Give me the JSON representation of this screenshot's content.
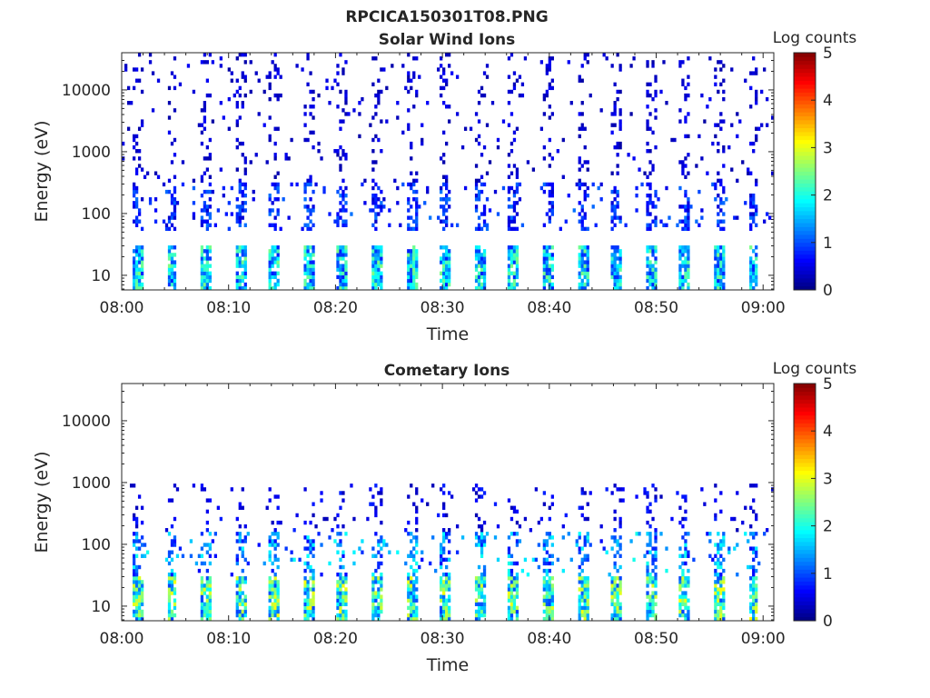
{
  "figure_title": "RPCICA150301T08.PNG",
  "chart_data": [
    {
      "type": "heatmap",
      "title": "Solar Wind Ions",
      "xlabel": "Time",
      "ylabel": "Energy (eV)",
      "x_ticks": [
        "08:00",
        "08:10",
        "08:20",
        "08:30",
        "08:40",
        "08:50",
        "09:00"
      ],
      "x_range_minutes": [
        0,
        61
      ],
      "y_scale": "log",
      "y_ticks": [
        10,
        100,
        1000,
        10000
      ],
      "y_tick_labels": [
        "10",
        "100",
        "1000",
        "10000"
      ],
      "ylim": [
        5.8,
        40000
      ],
      "colorbar": {
        "label": "Log counts",
        "range": [
          0,
          5
        ],
        "ticks": [
          "0",
          "1",
          "2",
          "3",
          "4",
          "5"
        ],
        "colormap": "jet"
      },
      "sweep_period_minutes": 3.2,
      "bursts": [
        {
          "band_eV": [
            6,
            30
          ],
          "log_counts_peak": 2.5
        },
        {
          "band_eV": [
            50,
            300
          ],
          "log_counts_peak": 1.2
        },
        {
          "band_eV": [
            300,
            40000
          ],
          "log_counts_peak": 0.6
        }
      ]
    },
    {
      "type": "heatmap",
      "title": "Cometary Ions",
      "xlabel": "Time",
      "ylabel": "Energy (eV)",
      "x_ticks": [
        "08:00",
        "08:10",
        "08:20",
        "08:30",
        "08:40",
        "08:50",
        "09:00"
      ],
      "x_range_minutes": [
        0,
        61
      ],
      "y_scale": "log",
      "y_ticks": [
        10,
        100,
        1000,
        10000
      ],
      "y_tick_labels": [
        "10",
        "100",
        "1000",
        "10000"
      ],
      "ylim": [
        5.8,
        40000
      ],
      "colorbar": {
        "label": "Log counts",
        "range": [
          0,
          5
        ],
        "ticks": [
          "0",
          "1",
          "2",
          "3",
          "4",
          "5"
        ],
        "colormap": "jet"
      },
      "sweep_period_minutes": 3.2,
      "bursts": [
        {
          "band_eV": [
            6,
            30
          ],
          "log_counts_peak": 3.1
        },
        {
          "band_eV": [
            30,
            150
          ],
          "log_counts_peak": 2.0
        },
        {
          "band_eV": [
            150,
            1000
          ],
          "log_counts_peak": 0.8
        }
      ]
    }
  ]
}
